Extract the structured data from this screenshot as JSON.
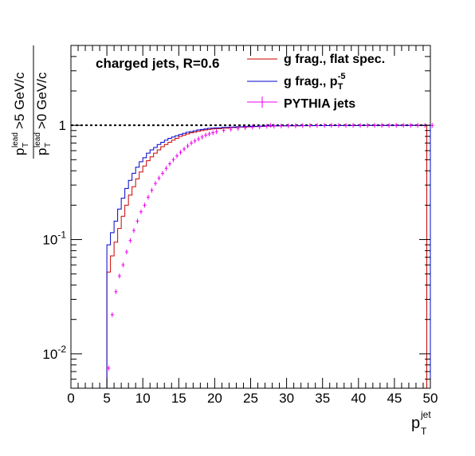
{
  "chart_data": {
    "type": "line",
    "annotation": "charged jets, R=0.6",
    "x_axis": {
      "label_main": "p",
      "label_sup": "jet",
      "label_sub": "T",
      "range": [
        0,
        50
      ],
      "ticks": [
        0,
        5,
        10,
        15,
        20,
        25,
        30,
        35,
        40,
        45,
        50
      ],
      "tick_labels": [
        "0",
        "5",
        "10",
        "15",
        "20",
        "25",
        "30",
        "35",
        "40",
        "45",
        "50"
      ]
    },
    "y_axis": {
      "scale": "log",
      "range": [
        0.005,
        5
      ],
      "numerator": {
        "main": "p",
        "sup": "lead",
        "sub": "T",
        "rest": ">5 GeV/c"
      },
      "denominator": {
        "main": "p",
        "sup": "lead",
        "sub": "T",
        "rest": ">0 GeV/c"
      },
      "decade_labels": [
        {
          "value": 0.01,
          "base": "10",
          "exp": "-2"
        },
        {
          "value": 0.1,
          "base": "10",
          "exp": "-1"
        },
        {
          "value": 1,
          "base": "1",
          "exp": ""
        }
      ]
    },
    "reference_line": {
      "y": 1,
      "style": "dotted"
    },
    "legend": {
      "position": "top-right",
      "entries": [
        {
          "label": "g frag., flat spec.",
          "sup": "",
          "color": "#cc0000",
          "marker": "line"
        },
        {
          "label": "g frag., p",
          "sup": "-5",
          "sub": "T",
          "color": "#0000cc",
          "marker": "line"
        },
        {
          "label": "PYTHIA jets",
          "sup": "",
          "color": "#ee00ee",
          "marker": "errorbar"
        }
      ]
    },
    "series": [
      {
        "name": "g frag., flat spec.",
        "color": "#cc0000",
        "style": "step",
        "x": [
          5,
          5.5,
          6,
          6.5,
          7,
          7.5,
          8,
          8.5,
          9,
          9.5,
          10,
          10.5,
          11,
          11.5,
          12,
          12.5,
          13,
          13.5,
          14,
          14.5,
          15,
          15.5,
          16,
          16.5,
          17,
          17.5,
          18,
          18.5,
          19,
          19.5,
          20,
          21,
          22,
          23,
          24,
          25,
          26,
          27,
          28,
          30,
          32,
          34,
          36,
          38,
          40,
          42,
          44,
          46,
          48,
          49,
          49.5
        ],
        "y": [
          0.052,
          0.072,
          0.095,
          0.125,
          0.16,
          0.2,
          0.245,
          0.29,
          0.34,
          0.39,
          0.44,
          0.49,
          0.53,
          0.57,
          0.61,
          0.65,
          0.68,
          0.71,
          0.74,
          0.77,
          0.8,
          0.82,
          0.84,
          0.86,
          0.87,
          0.885,
          0.9,
          0.91,
          0.92,
          0.93,
          0.935,
          0.945,
          0.955,
          0.965,
          0.97,
          0.975,
          0.98,
          0.985,
          0.988,
          0.99,
          0.992,
          0.994,
          0.995,
          0.996,
          0.997,
          0.997,
          0.998,
          0.998,
          0.998,
          0.998,
          0.005
        ]
      },
      {
        "name": "g frag., p_T^-5",
        "color": "#0000cc",
        "style": "step",
        "x": [
          5,
          5.5,
          6,
          6.5,
          7,
          7.5,
          8,
          8.5,
          9,
          9.5,
          10,
          10.5,
          11,
          11.5,
          12,
          12.5,
          13,
          13.5,
          14,
          14.5,
          15,
          15.5,
          16,
          16.5,
          17,
          17.5,
          18,
          18.5,
          19,
          19.5,
          20,
          21,
          22,
          23,
          24,
          25,
          26,
          27,
          28,
          30,
          32,
          34,
          36,
          38,
          40,
          42,
          44,
          46,
          48,
          49.5,
          50
        ],
        "y": [
          0.09,
          0.115,
          0.145,
          0.185,
          0.23,
          0.28,
          0.33,
          0.38,
          0.43,
          0.48,
          0.52,
          0.57,
          0.61,
          0.64,
          0.68,
          0.71,
          0.74,
          0.77,
          0.79,
          0.81,
          0.83,
          0.85,
          0.87,
          0.88,
          0.895,
          0.91,
          0.92,
          0.93,
          0.94,
          0.945,
          0.95,
          0.96,
          0.965,
          0.972,
          0.978,
          0.982,
          0.986,
          0.988,
          0.99,
          0.992,
          0.994,
          0.995,
          0.996,
          0.997,
          0.998,
          0.998,
          0.998,
          0.998,
          0.998,
          0.998,
          0.005
        ]
      },
      {
        "name": "PYTHIA jets",
        "color": "#ee00ee",
        "style": "errorbar",
        "x": [
          5.0,
          5.5,
          6.0,
          6.5,
          7.0,
          7.5,
          8.0,
          8.5,
          9.0,
          9.5,
          10.0,
          10.5,
          11.0,
          11.5,
          12.0,
          12.5,
          13.0,
          13.5,
          14.0,
          14.5,
          15.0,
          15.5,
          16.0,
          16.5,
          17.0,
          17.5,
          18.0,
          18.5,
          19.0,
          19.5,
          20.0,
          21,
          22,
          23,
          24,
          25,
          26,
          27,
          27.5,
          28,
          29,
          30,
          31,
          32,
          33,
          34,
          35,
          36,
          37,
          38,
          39,
          40,
          41,
          42,
          43,
          44,
          45,
          46,
          47,
          48,
          49,
          50
        ],
        "y": [
          0.0075,
          0.022,
          0.035,
          0.048,
          0.06,
          0.078,
          0.098,
          0.12,
          0.145,
          0.175,
          0.2,
          0.235,
          0.27,
          0.31,
          0.345,
          0.38,
          0.42,
          0.46,
          0.5,
          0.54,
          0.58,
          0.62,
          0.66,
          0.7,
          0.73,
          0.76,
          0.79,
          0.82,
          0.84,
          0.86,
          0.88,
          0.905,
          0.925,
          0.94,
          0.955,
          0.965,
          0.972,
          0.98,
          1.0,
          0.985,
          0.988,
          0.99,
          0.992,
          0.994,
          0.995,
          0.996,
          0.997,
          0.998,
          0.998,
          0.998,
          0.998,
          0.998,
          0.998,
          0.998,
          0.998,
          0.998,
          0.998,
          0.998,
          0.998,
          0.998,
          0.998,
          0.998
        ]
      }
    ]
  }
}
